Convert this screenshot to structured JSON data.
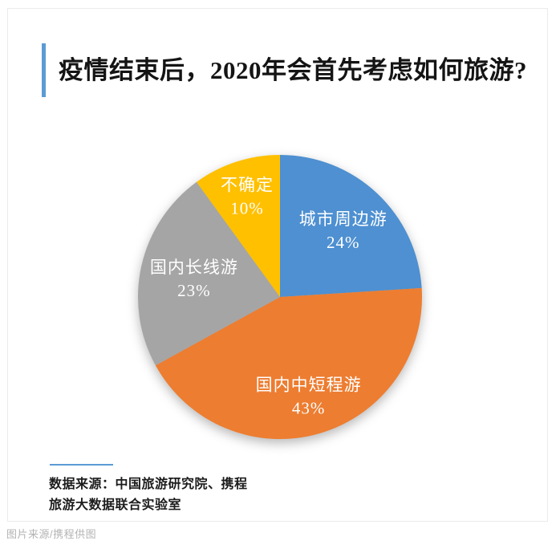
{
  "card": {
    "title": "疫情结束后，2020年会首先考虑如何旅游?",
    "accent_color": "#5b9bd5",
    "source_line1": "数据来源：中国旅游研究院、携程",
    "source_line2": "旅游大数据联合实验室"
  },
  "page": {
    "caption": "图片来源/携程供图"
  },
  "chart_data": {
    "type": "pie",
    "title": "疫情结束后，2020年会首先考虑如何旅游?",
    "categories": [
      "城市周边游",
      "国内中短程游",
      "国内长线游",
      "不确定"
    ],
    "values": [
      24,
      43,
      23,
      10
    ],
    "value_labels": [
      "24%",
      "43%",
      "23%",
      "10%"
    ],
    "unit": "%",
    "colors": [
      "#4e90d1",
      "#ed7d31",
      "#a5a5a5",
      "#ffc000"
    ],
    "start_angle_deg": 0,
    "direction": "clockwise",
    "legend": "none",
    "data_labels": "category-and-percent-inside",
    "label_color": "#ffffff",
    "label_radius": [
      0.65,
      0.72,
      0.62,
      0.75
    ]
  }
}
